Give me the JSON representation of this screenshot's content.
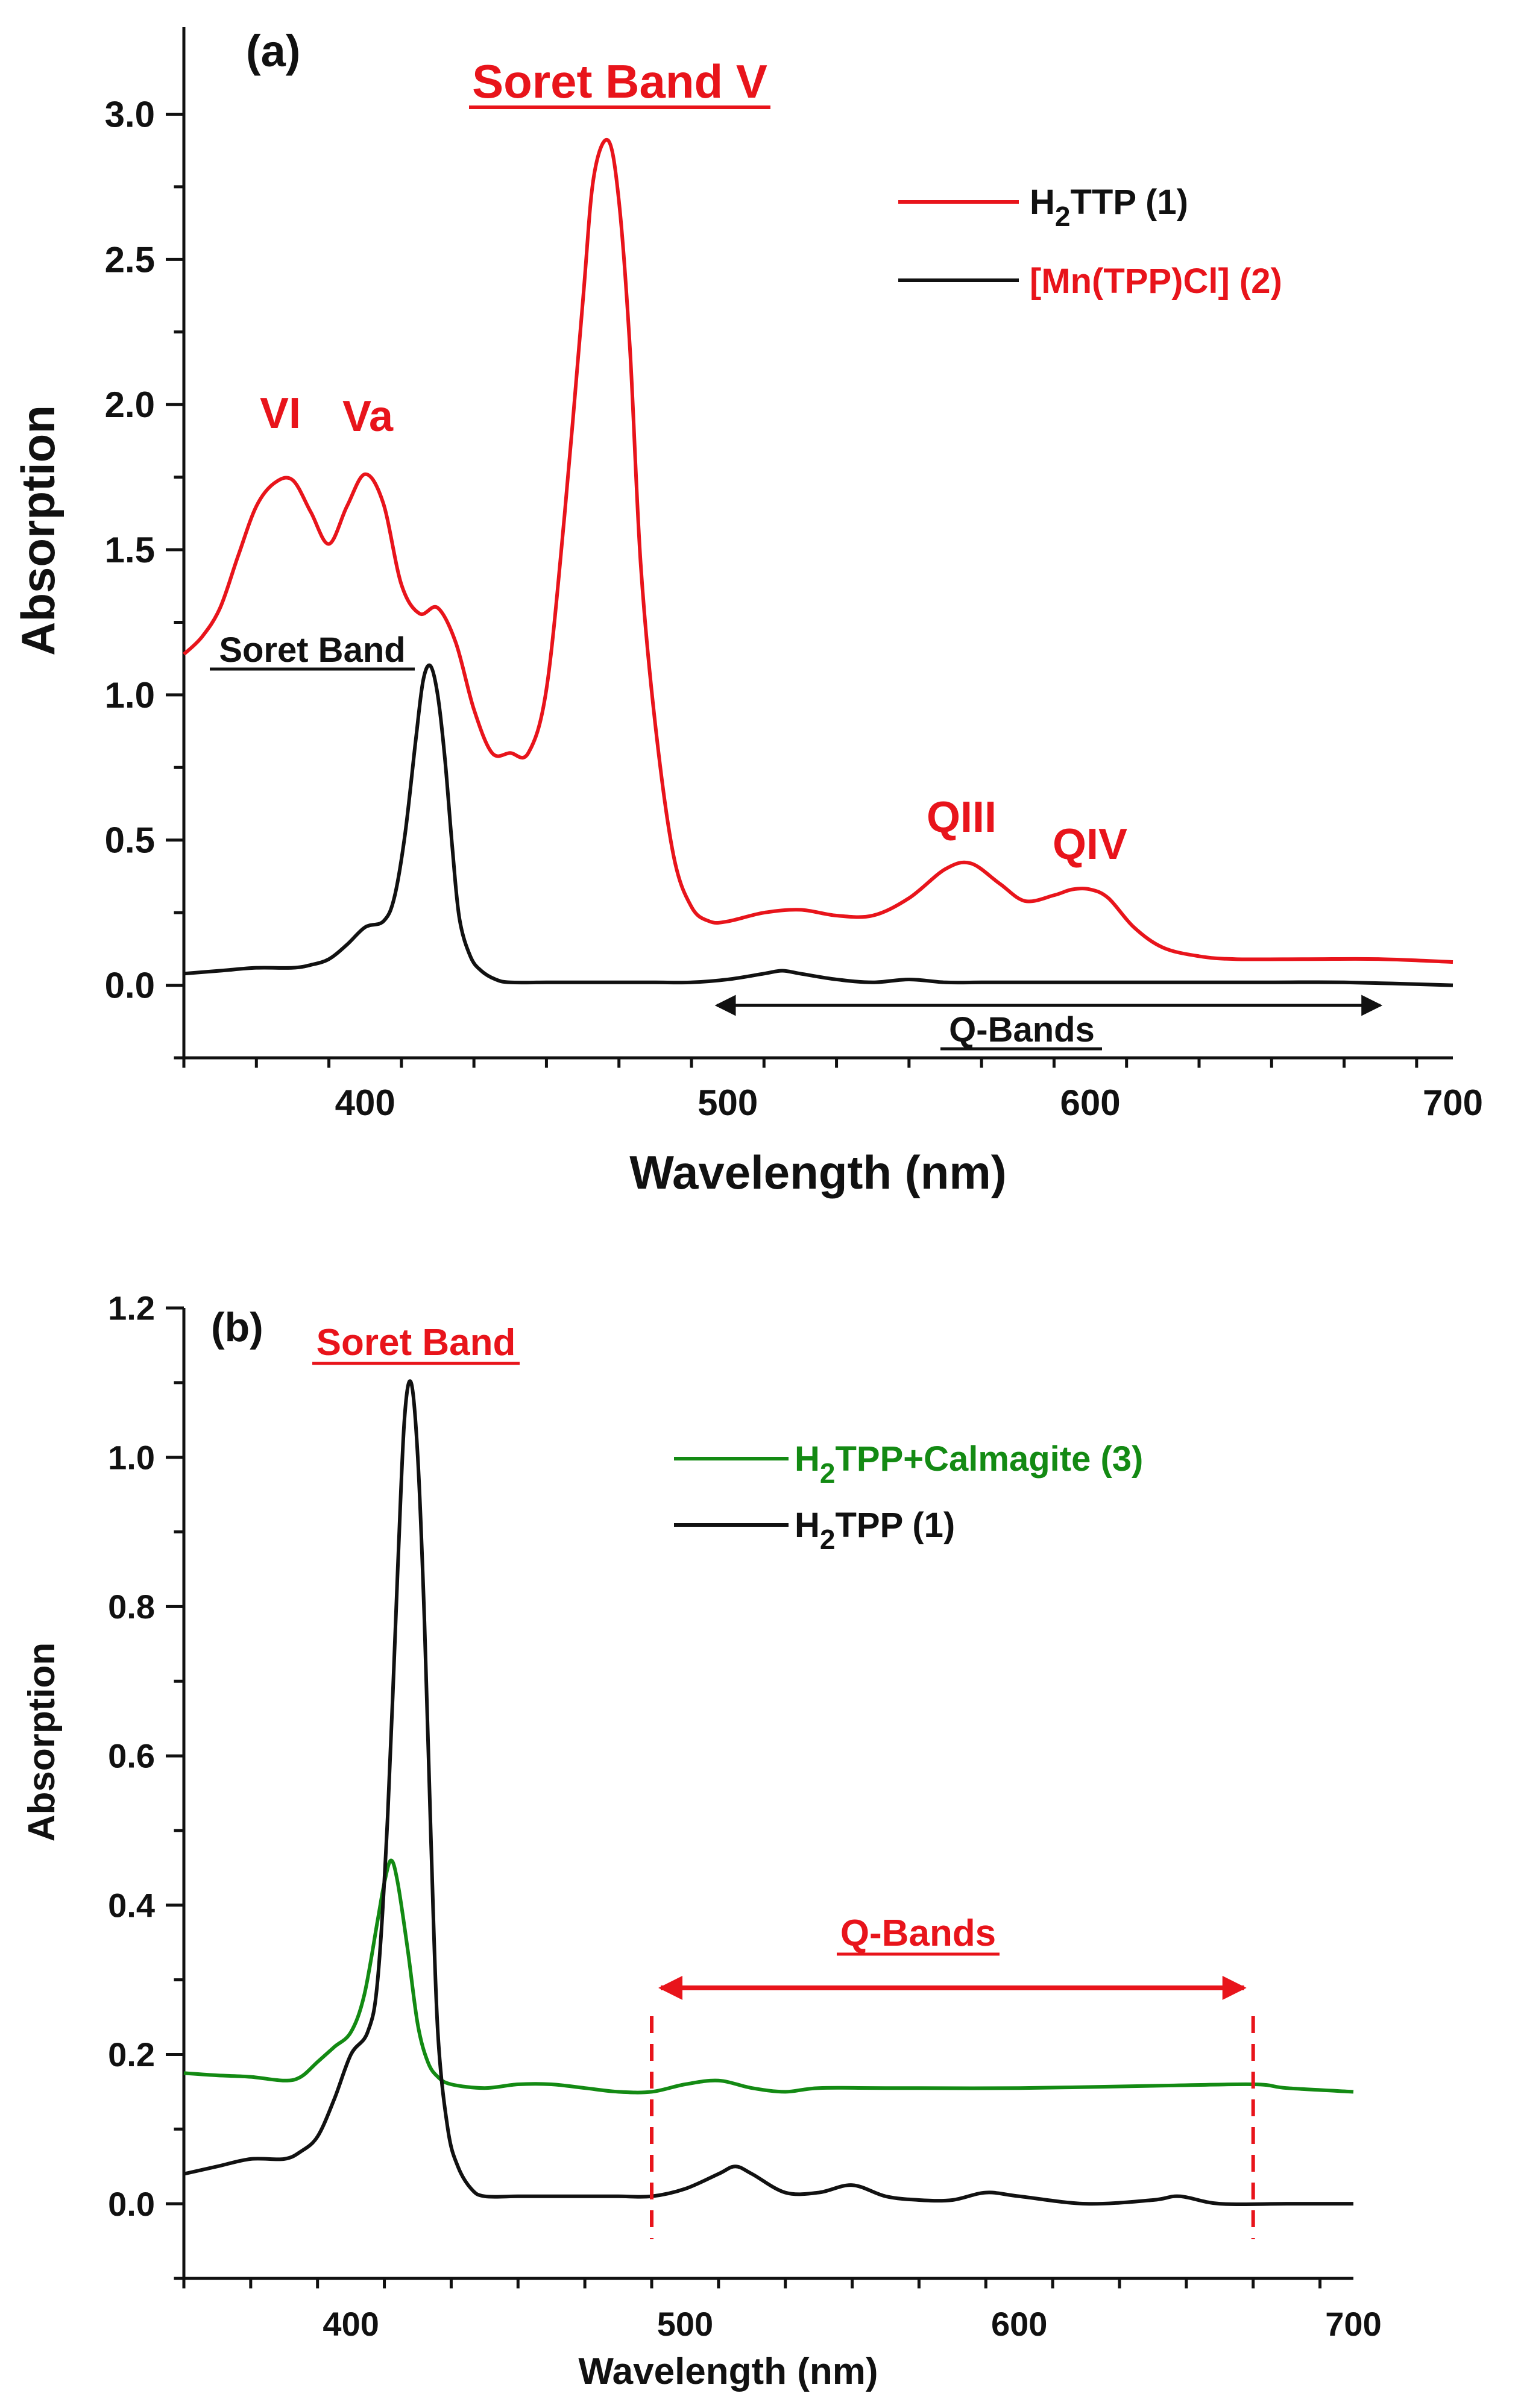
{
  "chart_data": [
    {
      "type": "line",
      "panel_label": "(a)",
      "xlabel": "Wavelength (nm)",
      "ylabel": "Absorption",
      "xlim": [
        350,
        700
      ],
      "ylim": [
        -0.25,
        3.3
      ],
      "x_ticks": [
        400,
        500,
        600,
        700
      ],
      "y_ticks": [
        0.0,
        0.5,
        1.0,
        1.5,
        2.0,
        2.5,
        3.0
      ],
      "y_tick_labels": [
        "0.0",
        "0.5",
        "1.0",
        "1.5",
        "2.0",
        "2.5",
        "3.0"
      ],
      "legend": {
        "position": "top-right",
        "entries": [
          {
            "series": 0,
            "main": "H",
            "sub": "2",
            "rest": "TTP (1)",
            "text_color": "#111111"
          },
          {
            "series": 1,
            "main": "[Mn(TPP)Cl] (2)",
            "sub": "",
            "rest": "",
            "text_color": "#e8141b"
          }
        ]
      },
      "series": [
        {
          "name": "H2TTP (1)",
          "color": "#e8141b",
          "x": [
            350,
            355,
            360,
            365,
            370,
            375,
            380,
            385,
            390,
            395,
            400,
            405,
            410,
            415,
            420,
            425,
            430,
            435,
            440,
            445,
            450,
            455,
            460,
            463,
            467,
            470,
            473,
            476,
            480,
            485,
            490,
            495,
            500,
            510,
            520,
            530,
            540,
            550,
            560,
            567,
            575,
            582,
            590,
            595,
            600,
            605,
            612,
            620,
            630,
            640,
            660,
            680,
            700
          ],
          "y": [
            1.14,
            1.2,
            1.3,
            1.48,
            1.65,
            1.73,
            1.74,
            1.63,
            1.52,
            1.65,
            1.76,
            1.66,
            1.38,
            1.28,
            1.3,
            1.18,
            0.95,
            0.8,
            0.8,
            0.8,
            1.02,
            1.62,
            2.35,
            2.78,
            2.91,
            2.7,
            2.2,
            1.45,
            0.9,
            0.45,
            0.27,
            0.22,
            0.22,
            0.25,
            0.26,
            0.24,
            0.24,
            0.3,
            0.4,
            0.42,
            0.35,
            0.29,
            0.31,
            0.33,
            0.33,
            0.3,
            0.2,
            0.13,
            0.1,
            0.09,
            0.09,
            0.09,
            0.08
          ]
        },
        {
          "name": "[Mn(TPP)Cl] (2)",
          "color": "#111111",
          "x": [
            350,
            360,
            370,
            380,
            385,
            390,
            395,
            400,
            405,
            408,
            411,
            414,
            416,
            418,
            420,
            422,
            424,
            426,
            429,
            432,
            436,
            440,
            450,
            460,
            470,
            480,
            490,
            500,
            510,
            515,
            520,
            530,
            540,
            550,
            560,
            570,
            580,
            590,
            600,
            620,
            650,
            670,
            700
          ],
          "y": [
            0.04,
            0.05,
            0.06,
            0.06,
            0.07,
            0.09,
            0.14,
            0.2,
            0.22,
            0.3,
            0.52,
            0.85,
            1.05,
            1.1,
            1.0,
            0.78,
            0.48,
            0.23,
            0.1,
            0.05,
            0.02,
            0.01,
            0.01,
            0.01,
            0.01,
            0.01,
            0.01,
            0.02,
            0.04,
            0.05,
            0.04,
            0.02,
            0.01,
            0.02,
            0.01,
            0.01,
            0.01,
            0.01,
            0.01,
            0.01,
            0.01,
            0.01,
            0.0
          ]
        }
      ],
      "annotations": {
        "soret_band_v": {
          "text": "Soret Band V",
          "color": "#e8141b"
        },
        "vi": {
          "text": "VI",
          "color": "#e8141b"
        },
        "va": {
          "text": "Va",
          "color": "#e8141b"
        },
        "qiii": {
          "text": "QIII",
          "color": "#e8141b"
        },
        "qiv": {
          "text": "QIV",
          "color": "#e8141b"
        },
        "soret_band": {
          "text": "Soret Band",
          "color": "#111111"
        },
        "q_bands": {
          "text": "Q-Bands",
          "color": "#111111"
        }
      },
      "q_bands_range": [
        497,
        680
      ]
    },
    {
      "type": "line",
      "panel_label": "(b)",
      "xlabel": "Wavelength (nm)",
      "ylabel": "Absorption",
      "xlim": [
        350,
        700
      ],
      "ylim": [
        -0.1,
        1.2
      ],
      "x_ticks": [
        400,
        500,
        600,
        700
      ],
      "y_ticks": [
        0.0,
        0.2,
        0.4,
        0.6,
        0.8,
        1.0,
        1.2
      ],
      "y_tick_labels": [
        "0.0",
        "0.2",
        "0.4",
        "0.6",
        "0.8",
        "1.0",
        "1.2"
      ],
      "legend": {
        "position": "top-right",
        "entries": [
          {
            "series": 0,
            "main": "H",
            "sub": "2",
            "rest": "TPP+Calmagite (3)",
            "text_color": "#138a13"
          },
          {
            "series": 1,
            "main": "H",
            "sub": "2",
            "rest": "TPP (1)",
            "text_color": "#111111"
          }
        ]
      },
      "series": [
        {
          "name": "H2TPP+Calmagite (3)",
          "color": "#138a13",
          "x": [
            350,
            360,
            370,
            380,
            385,
            390,
            395,
            400,
            404,
            408,
            410,
            412,
            414,
            417,
            420,
            423,
            426,
            430,
            440,
            450,
            460,
            470,
            480,
            490,
            500,
            510,
            520,
            530,
            540,
            560,
            600,
            640,
            670,
            680,
            700
          ],
          "y": [
            0.175,
            0.172,
            0.17,
            0.165,
            0.17,
            0.19,
            0.21,
            0.23,
            0.28,
            0.38,
            0.43,
            0.46,
            0.43,
            0.34,
            0.24,
            0.19,
            0.17,
            0.16,
            0.155,
            0.16,
            0.16,
            0.155,
            0.15,
            0.15,
            0.16,
            0.165,
            0.155,
            0.15,
            0.155,
            0.155,
            0.155,
            0.158,
            0.16,
            0.155,
            0.15
          ]
        },
        {
          "name": "H2TPP (1)",
          "color": "#111111",
          "x": [
            350,
            360,
            370,
            380,
            385,
            390,
            395,
            400,
            405,
            408,
            411,
            414,
            416,
            418,
            420,
            422,
            424,
            426,
            429,
            432,
            436,
            440,
            450,
            460,
            470,
            480,
            490,
            500,
            510,
            515,
            520,
            530,
            540,
            550,
            560,
            570,
            580,
            590,
            600,
            620,
            640,
            648,
            660,
            680,
            700
          ],
          "y": [
            0.04,
            0.05,
            0.06,
            0.06,
            0.07,
            0.09,
            0.14,
            0.2,
            0.23,
            0.3,
            0.52,
            0.85,
            1.05,
            1.1,
            1.0,
            0.78,
            0.48,
            0.23,
            0.1,
            0.05,
            0.02,
            0.01,
            0.01,
            0.01,
            0.01,
            0.01,
            0.01,
            0.02,
            0.04,
            0.05,
            0.04,
            0.015,
            0.015,
            0.025,
            0.01,
            0.005,
            0.005,
            0.015,
            0.01,
            0.0,
            0.005,
            0.01,
            0.0,
            0.0,
            0.0
          ]
        }
      ],
      "annotations": {
        "soret_band": {
          "text": "Soret Band",
          "color": "#e8141b"
        },
        "q_bands": {
          "text": "Q-Bands",
          "color": "#e8141b"
        }
      },
      "q_bands_range": [
        490,
        670
      ]
    }
  ]
}
